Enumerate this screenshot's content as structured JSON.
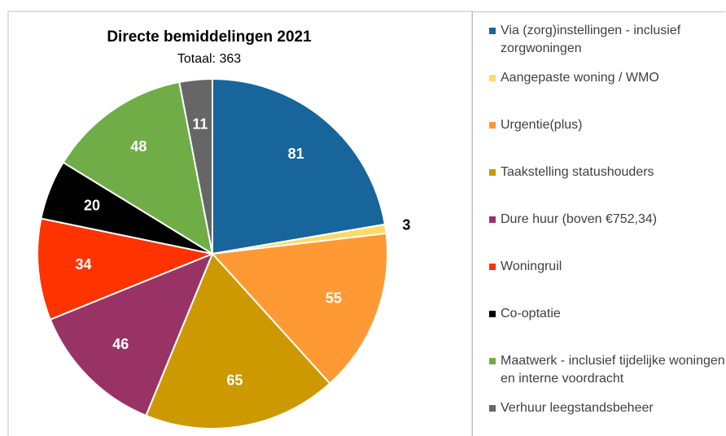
{
  "chart_data": {
    "type": "pie",
    "title": "Directe bemiddelingen 2021",
    "subtitle": "Totaal: 363",
    "categories": [
      "Via (zorg)instellingen - inclusief zorgwoningen",
      "Aangepaste woning / WMO",
      "Urgentie(plus)",
      "Taakstelling statushouders",
      "Dure huur (boven €752,34)",
      "Woningruil",
      "Co-optatie",
      "Maatwerk - inclusief tijdelijke woningen en interne voordracht",
      "Verhuur leegstandsbeheer"
    ],
    "values": [
      81,
      3,
      55,
      65,
      46,
      34,
      20,
      48,
      11
    ],
    "colors": [
      "#17659a",
      "#ffd966",
      "#ff9933",
      "#cc9900",
      "#993366",
      "#ff3300",
      "#000000",
      "#70ad47",
      "#666666"
    ],
    "legend": "right"
  }
}
